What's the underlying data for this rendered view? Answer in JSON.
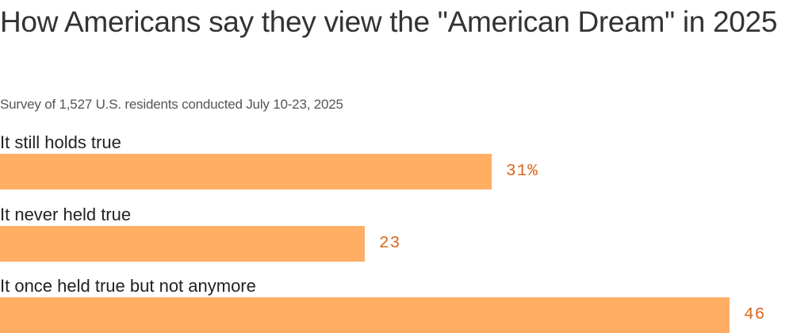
{
  "chart_data": {
    "type": "bar",
    "orientation": "horizontal",
    "title": "How Americans say they view the \"American Dream\" in 2025",
    "subtitle": "Survey of 1,527 U.S. residents conducted July 10-23, 2025",
    "categories": [
      "It still holds true",
      "It never held true",
      "It once held true but not anymore"
    ],
    "values": [
      31,
      23,
      46
    ],
    "value_labels": [
      "31%",
      "23",
      "46"
    ],
    "unit": "%",
    "xlim": [
      0,
      50
    ],
    "grid": false,
    "legend": "none",
    "colors": {
      "bar": "#ffae63",
      "value_label": "#d9681b"
    }
  }
}
